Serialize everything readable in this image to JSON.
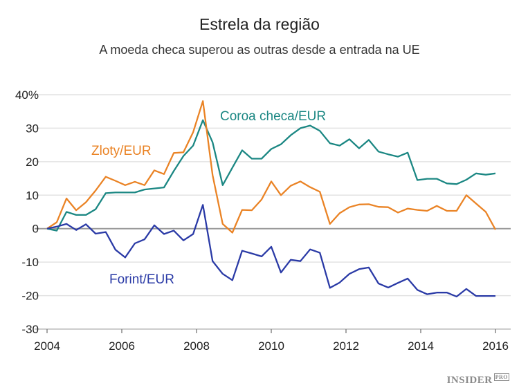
{
  "chart_data": {
    "type": "line",
    "title": "Estrela da região",
    "subtitle": "A moeda checa superou as outras desde a entrada na UE",
    "xlabel": "",
    "ylabel": "",
    "xlim": [
      2004,
      2016
    ],
    "ylim": [
      -30,
      40
    ],
    "x_ticks": [
      "2004",
      "2006",
      "2008",
      "2010",
      "2012",
      "2014",
      "2016"
    ],
    "y_ticks": [
      "40%",
      "30",
      "20",
      "10",
      "0",
      "-10",
      "-20",
      "-30"
    ],
    "grid": true,
    "x": [
      2004.0,
      2004.26,
      2004.52,
      2004.78,
      2005.04,
      2005.3,
      2005.57,
      2005.83,
      2006.09,
      2006.35,
      2006.61,
      2006.87,
      2007.13,
      2007.39,
      2007.65,
      2007.91,
      2008.17,
      2008.43,
      2008.7,
      2008.96,
      2009.22,
      2009.48,
      2009.74,
      2010.0,
      2010.26,
      2010.52,
      2010.78,
      2011.04,
      2011.3,
      2011.57,
      2011.83,
      2012.09,
      2012.35,
      2012.61,
      2012.87,
      2013.13,
      2013.39,
      2013.65,
      2013.91,
      2014.17,
      2014.43,
      2014.7,
      2014.96,
      2015.22,
      2015.48,
      2015.74,
      2016.0
    ],
    "series": [
      {
        "name": "Coroa checa/EUR",
        "color": "#1b8783",
        "values": [
          0,
          -0.6,
          5,
          4.1,
          4.1,
          5.8,
          10.6,
          10.8,
          10.8,
          10.8,
          11.7,
          12,
          12.3,
          17.2,
          21.7,
          24.8,
          32.4,
          25.8,
          13,
          18.2,
          23.4,
          20.9,
          20.9,
          23.8,
          25.2,
          27.9,
          30,
          30.8,
          29.2,
          25.5,
          24.8,
          26.7,
          24,
          26.5,
          23,
          22.2,
          21.5,
          22.7,
          14.5,
          14.9,
          14.9,
          13.5,
          13.3,
          14.6,
          16.5,
          16.1,
          16.5
        ]
      },
      {
        "name": "Zloty/EUR",
        "color": "#ea8325",
        "values": [
          0,
          1.9,
          9,
          5.5,
          7.9,
          11.4,
          15.5,
          14.3,
          13,
          14,
          13,
          17.4,
          16.3,
          22.6,
          22.8,
          28.8,
          38.1,
          16,
          1.4,
          -1.2,
          5.6,
          5.5,
          8.7,
          14.1,
          10,
          12.8,
          14.1,
          12.4,
          11,
          1.4,
          4.6,
          6.4,
          7.2,
          7.3,
          6.5,
          6.4,
          4.8,
          6,
          5.6,
          5.3,
          6.8,
          5.3,
          5.3,
          10,
          7.5,
          5.0,
          -0.3
        ]
      },
      {
        "name": "Forint/EUR",
        "color": "#2a3aa6",
        "values": [
          0,
          0.6,
          1.4,
          -0.4,
          1.3,
          -1.5,
          -1,
          -6.3,
          -8.6,
          -4.4,
          -3.2,
          1,
          -1.6,
          -0.6,
          -3.5,
          -1.6,
          7.1,
          -9.7,
          -13.5,
          -15.4,
          -6.6,
          -7.4,
          -8.3,
          -5.4,
          -13.1,
          -9.3,
          -9.7,
          -6.2,
          -7.2,
          -17.7,
          -16.1,
          -13.5,
          -12.1,
          -11.6,
          -16.4,
          -17.6,
          -16.2,
          -14.9,
          -18.3,
          -19.6,
          -19.1,
          -19.1,
          -20.3,
          -18,
          -20.1,
          -20.1,
          -20.1
        ]
      }
    ]
  },
  "logo": {
    "text": "INSIDER",
    "suffix": "PRO"
  }
}
